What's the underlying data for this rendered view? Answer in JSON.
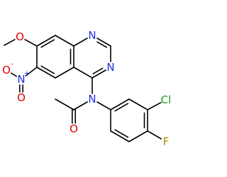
{
  "atoms": [
    {
      "label": "O"
    },
    {
      "label": "N"
    },
    {
      "label": "N"
    },
    {
      "label": "N",
      "charge": "+"
    },
    {
      "label": "O",
      "charge": "-"
    },
    {
      "label": "O"
    },
    {
      "label": "N"
    },
    {
      "label": "O"
    },
    {
      "label": "Cl"
    },
    {
      "label": "F"
    }
  ]
}
